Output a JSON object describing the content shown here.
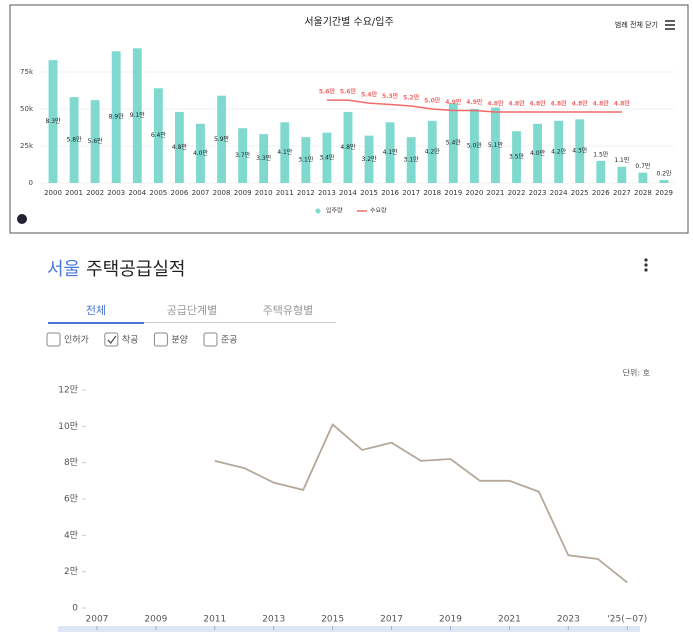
{
  "chart_data": [
    {
      "type": "bar",
      "title": "서울기간별 수요/입주",
      "button": "범례 전체 닫기",
      "categories": [
        "2000",
        "2001",
        "2002",
        "2003",
        "2004",
        "2005",
        "2006",
        "2007",
        "2008",
        "2009",
        "2010",
        "2011",
        "2012",
        "2013",
        "2014",
        "2015",
        "2016",
        "2017",
        "2018",
        "2019",
        "2020",
        "2021",
        "2022",
        "2023",
        "2024",
        "2025",
        "2026",
        "2027",
        "2028",
        "2029"
      ],
      "ylim": [
        0,
        100000
      ],
      "yticks": [
        0,
        {
          "value": 25000,
          "label": "25k"
        },
        {
          "value": 50000,
          "label": "50k"
        },
        {
          "value": 75000,
          "label": "75k"
        }
      ],
      "series": [
        {
          "name": "입주량",
          "type": "bar",
          "color": "#7fd9cf",
          "values": [
            83000,
            58000,
            56000,
            89000,
            91000,
            64000,
            48000,
            40000,
            59000,
            37000,
            33000,
            41000,
            31000,
            34000,
            48000,
            32000,
            41000,
            31000,
            42000,
            54000,
            50000,
            51000,
            35000,
            40000,
            42000,
            43000,
            15000,
            11000,
            7000,
            2000
          ],
          "value_labels": [
            "8.3만",
            "5.8만",
            "5.6만",
            "8.9만",
            "9.1만",
            "6.4만",
            "4.8만",
            "4.0만",
            "5.9만",
            "3.7만",
            "3.3만",
            "4.1만",
            "3.1만",
            "3.4만",
            "4.8만",
            "3.2만",
            "4.1만",
            "3.1만",
            "4.2만",
            "5.4만",
            "5.0만",
            "5.1만",
            "3.5만",
            "4.0만",
            "4.2만",
            "4.3만",
            "1.5만",
            "1.1만",
            "0.7만",
            "0.2만"
          ]
        },
        {
          "name": "수요량",
          "type": "line",
          "color": "#f06a6a",
          "values": [
            null,
            null,
            null,
            null,
            null,
            null,
            null,
            null,
            null,
            null,
            null,
            null,
            null,
            56000,
            56000,
            54000,
            53000,
            52000,
            50000,
            49000,
            49000,
            48000,
            48000,
            48000,
            48000,
            48000,
            48000,
            48000,
            null,
            null
          ],
          "value_labels": [
            null,
            null,
            null,
            null,
            null,
            null,
            null,
            null,
            null,
            null,
            null,
            null,
            null,
            "5.6만",
            "5.6만",
            "5.4만",
            "5.3만",
            "5.2만",
            "5.0만",
            "4.9만",
            "4.9만",
            "4.8만",
            "4.8만",
            "4.8만",
            "4.8만",
            "4.8만",
            "4.8만",
            "4.8만",
            null,
            null
          ]
        }
      ]
    },
    {
      "type": "line",
      "title_region": "서울",
      "title": "주택공급실적",
      "unit": "단위: 호",
      "color": "#b4a89a",
      "x": [
        2011,
        2012,
        2013,
        2014,
        2015,
        2016,
        2017,
        2018,
        2019,
        2020,
        2021,
        2022,
        2023,
        2024,
        2025
      ],
      "values": [
        81000,
        77000,
        69000,
        65000,
        101000,
        87000,
        91000,
        81000,
        82000,
        70000,
        70000,
        64000,
        29000,
        27000,
        14000
      ],
      "xlim": [
        2006,
        2025.5
      ],
      "xticks": [
        2007,
        2009,
        2011,
        2013,
        2015,
        2017,
        2019,
        2021,
        2023,
        {
          "value": 2025,
          "label": "'25(~07)"
        }
      ],
      "ylim": [
        0,
        120000
      ],
      "yticks": [
        0,
        {
          "value": 20000,
          "label": "2만"
        },
        {
          "value": 40000,
          "label": "4만"
        },
        {
          "value": 60000,
          "label": "6만"
        },
        {
          "value": 80000,
          "label": "8만"
        },
        {
          "value": 100000,
          "label": "10만"
        },
        {
          "value": 120000,
          "label": "12만"
        }
      ]
    }
  ],
  "tabs": [
    {
      "label": "전체",
      "active": true
    },
    {
      "label": "공급단계별",
      "active": false
    },
    {
      "label": "주택유형별",
      "active": false
    }
  ],
  "filters": [
    {
      "label": "인허가",
      "checked": false
    },
    {
      "label": "착공",
      "checked": true
    },
    {
      "label": "분양",
      "checked": false
    },
    {
      "label": "준공",
      "checked": false
    }
  ]
}
